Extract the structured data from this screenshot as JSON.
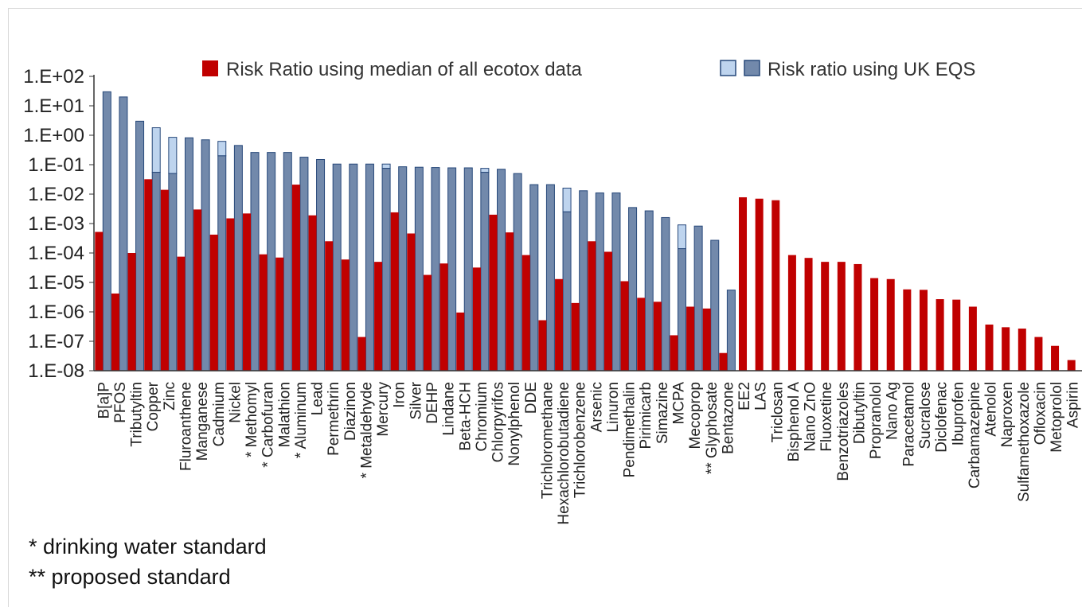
{
  "chart_data": {
    "type": "bar",
    "y_scale": "log",
    "ylim": [
      1e-08,
      100
    ],
    "y_ticks": [
      "1.E+02",
      "1.E+01",
      "1.E+00",
      "1.E-01",
      "1.E-02",
      "1.E-03",
      "1.E-04",
      "1.E-05",
      "1.E-06",
      "1.E-07",
      "1.E-08"
    ],
    "grid": false,
    "legend_position": "top",
    "legend": [
      {
        "label": "Risk Ratio using median of all ecotox data",
        "color": "#c00000"
      },
      {
        "label": "Risk ratio using UK EQS",
        "color": "#7289ab",
        "alt_color": "#bed4ee"
      }
    ],
    "categories": [
      "B[a]P",
      "PFOS",
      "Tributyltin",
      "Copper",
      "Zinc",
      "Fluroanthene",
      "Manganese",
      "Cadmium",
      "Nickel",
      "* Methomyl",
      "* Carbofuran",
      "Malathion",
      "* Aluminum",
      "Lead",
      "Permethrin",
      "Diazinon",
      "* Metaldehyde",
      "Mercury",
      "Iron",
      "Silver",
      "DEHP",
      "Lindane",
      "Beta-HCH",
      "Chromium",
      "Chlorpyrifos",
      "Nonylphenol",
      "DDE",
      "Trichloromethane",
      "Hexachlorobutadiene",
      "Trichlorobenzene",
      "Arsenic",
      "Linuron",
      "Pendimethalin",
      "Pirimicarb",
      "Simazine",
      "MCPA",
      "Mecoprop",
      "** Glyphosate",
      "Bentazone",
      "EE2",
      "LAS",
      "Triclosan",
      "Bisphenol A",
      "Nano ZnO",
      "Fluoxetine",
      "Benzotriazoles",
      "Dibutyltin",
      "Propranolol",
      "Nano Ag",
      "Paracetamol",
      "Sucralose",
      "Diclofenac",
      "Ibuprofen",
      "Carbamazepine",
      "Atenolol",
      "Naproxen",
      "Sulfamethoxazole",
      "Ofloxacin",
      "Metoprolol",
      "Aspirin"
    ],
    "series": [
      {
        "name": "Risk Ratio using median of all ecotox data",
        "values": [
          0.00052,
          4.2e-06,
          0.0001,
          0.032,
          0.014,
          7.5e-05,
          0.003,
          0.00042,
          0.0015,
          0.0022,
          9e-05,
          7e-05,
          0.021,
          0.0019,
          0.00025,
          6e-05,
          1.4e-07,
          5e-05,
          0.0024,
          0.00046,
          1.8e-05,
          4.4e-05,
          9.5e-07,
          3.2e-05,
          0.002,
          0.0005,
          8.5e-05,
          5.2e-07,
          1.3e-05,
          2e-06,
          0.00025,
          0.00011,
          1.1e-05,
          3e-06,
          2.2e-06,
          1.6e-07,
          1.5e-06,
          1.3e-06,
          4e-08,
          0.0078,
          0.007,
          0.0062,
          8.5e-05,
          6.8e-05,
          5e-05,
          5e-05,
          4.2e-05,
          1.4e-05,
          1.3e-05,
          5.8e-06,
          5.6e-06,
          2.7e-06,
          2.6e-06,
          1.5e-06,
          3.7e-07,
          3e-07,
          2.7e-07,
          1.4e-07,
          7e-08,
          2.3e-08
        ]
      },
      {
        "name": "Risk ratio using UK EQS",
        "values": [
          30,
          20,
          3.0,
          1.8,
          0.85,
          0.82,
          0.7,
          0.62,
          0.45,
          0.26,
          0.26,
          0.26,
          0.18,
          0.15,
          0.105,
          0.105,
          0.105,
          0.105,
          0.085,
          0.082,
          0.08,
          0.078,
          0.078,
          0.075,
          0.07,
          0.05,
          0.021,
          0.021,
          0.016,
          0.013,
          0.011,
          0.011,
          0.0035,
          0.0027,
          0.0016,
          0.0009,
          0.00082,
          0.00027,
          5.5e-06,
          null,
          null,
          null,
          null,
          null,
          null,
          null,
          null,
          null,
          null,
          null,
          null,
          null,
          null,
          null,
          null,
          null,
          null,
          null,
          null,
          null
        ],
        "alternative_values": [
          null,
          null,
          null,
          0.055,
          0.05,
          null,
          null,
          0.2,
          null,
          null,
          null,
          null,
          null,
          null,
          null,
          null,
          null,
          0.075,
          null,
          null,
          null,
          null,
          null,
          0.055,
          null,
          null,
          null,
          null,
          0.0025,
          null,
          null,
          null,
          null,
          null,
          null,
          0.00014,
          null,
          null,
          null,
          null,
          null,
          null,
          null,
          null,
          null,
          null,
          null,
          null,
          null,
          null,
          null,
          null,
          null,
          null,
          null,
          null,
          null,
          null,
          null,
          null
        ]
      }
    ]
  },
  "notes": {
    "drinking": "* drinking water standard",
    "proposed": "** proposed standard"
  }
}
